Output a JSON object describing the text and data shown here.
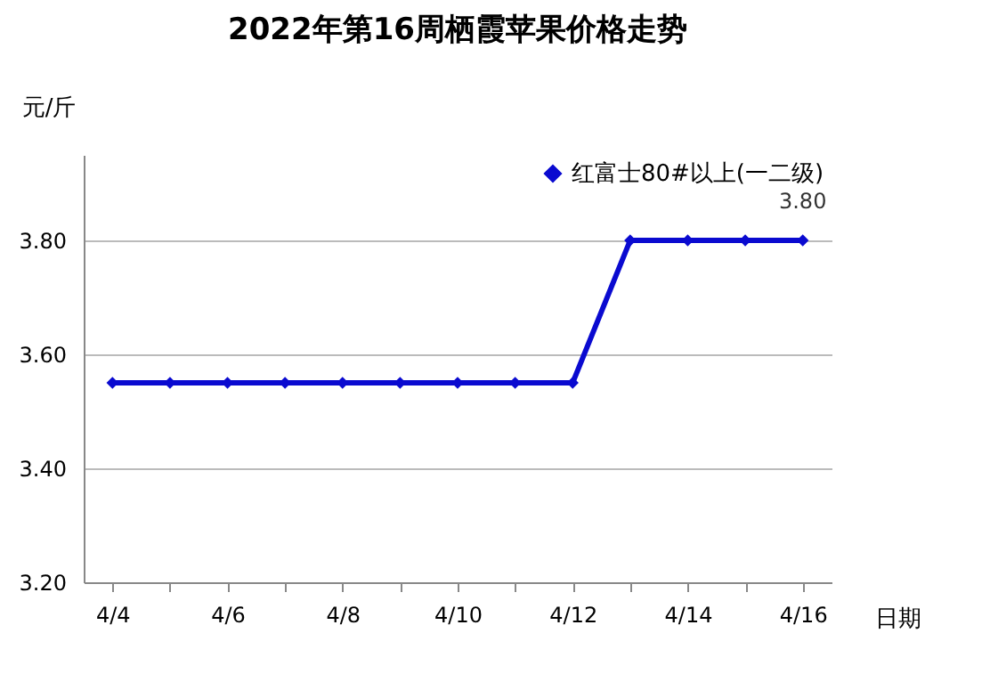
{
  "chart_data": {
    "type": "line",
    "title": "2022年第16周栖霞苹果价格走势",
    "xlabel": "日期",
    "ylabel": "元/斤",
    "categories": [
      "4/4",
      null,
      "4/6",
      null,
      "4/8",
      null,
      "4/10",
      null,
      "4/12",
      null,
      "4/14",
      null,
      "4/16"
    ],
    "series": [
      {
        "name": "红富士80#以上(一二级)",
        "color": "#0a0ad0",
        "values": [
          3.55,
          3.55,
          3.55,
          3.55,
          3.55,
          3.55,
          3.55,
          3.55,
          3.55,
          3.8,
          3.8,
          3.8,
          3.8
        ],
        "value_labels": [
          null,
          null,
          null,
          null,
          null,
          null,
          null,
          null,
          null,
          null,
          null,
          null,
          "3.80"
        ]
      }
    ],
    "ylim": [
      3.2,
      3.95
    ],
    "yticks": [
      {
        "value": 3.2,
        "label": "3.20"
      },
      {
        "value": 3.4,
        "label": "3.40"
      },
      {
        "value": 3.6,
        "label": "3.60"
      },
      {
        "value": 3.8,
        "label": "3.80"
      }
    ],
    "grid": "y",
    "legend": "top right",
    "marker": "diamond",
    "line_style": "solid"
  }
}
